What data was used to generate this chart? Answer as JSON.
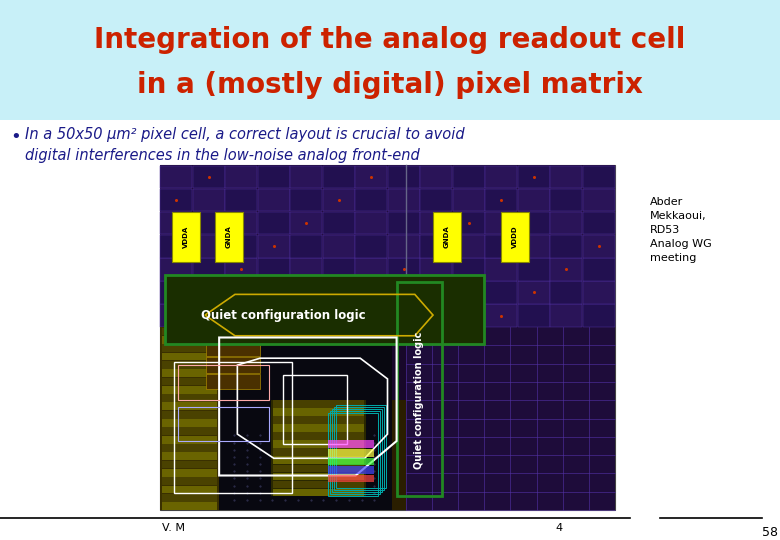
{
  "title_line1": "Integration of the analog readout cell",
  "title_line2": "in a (mostly digital) pixel matrix",
  "title_color": "#cc2200",
  "title_bg_color": "#c8f0f8",
  "bullet_line1": "In a 50x50 μm² pixel cell, a correct layout is crucial to avoid",
  "bullet_line2": "digital interferences in the low-noise analog front-end",
  "bullet_color": "#1a1a88",
  "label_vdda": "VDDA",
  "label_gnda": "GNDA",
  "label_gnda2": "GNDA",
  "label_vddd": "VDDD",
  "label_quiet1": "Quiet configuration logic",
  "label_quiet2": "Quiet configuration logic",
  "credit_text": "Abder\nMekkaoui,\nRD53\nAnalog WG\nmeeting",
  "slide_number": "58",
  "bottom_left": "V. M",
  "bottom_mid": "4",
  "bg_color": "#ffffff",
  "chip_bg": "#18082a",
  "chip_top_bg": "#2a1550",
  "chip_right_bg": "#2a1550",
  "chip_analog_bg": "#3a2800",
  "chip_black": "#050508",
  "chip_olive": "#5a5800",
  "chip_gold": "#7a6800"
}
